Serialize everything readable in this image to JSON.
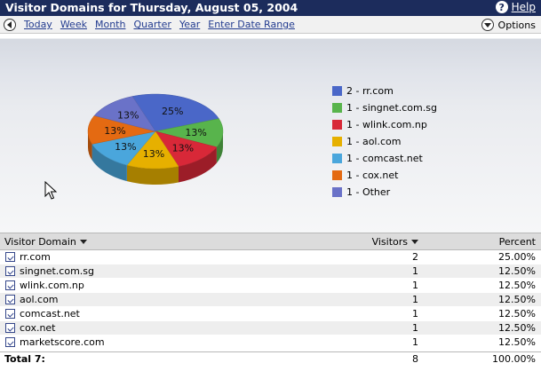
{
  "header": {
    "title": "Visitor Domains for Thursday, August 05, 2004",
    "help_label": "Help",
    "help_icon": "help-icon"
  },
  "toolbar": {
    "back_icon": "back-arrow-icon",
    "links": [
      "Today",
      "Week",
      "Month",
      "Quarter",
      "Year",
      "Enter Date Range"
    ],
    "options_label": "Options",
    "options_icon": "chevron-down-icon"
  },
  "chart_data": {
    "type": "pie",
    "style": "3d",
    "categories": [
      "rr.com",
      "singnet.com.sg",
      "wlink.com.np",
      "aol.com",
      "comcast.net",
      "cox.net",
      "Other"
    ],
    "values": [
      2,
      1,
      1,
      1,
      1,
      1,
      1
    ],
    "slice_labels": [
      "25%",
      "13%",
      "13%",
      "13%",
      "13%",
      "13%",
      "13%"
    ],
    "legend": [
      "2 - rr.com",
      "1 - singnet.com.sg",
      "1 - wlink.com.np",
      "1 - aol.com",
      "1 - comcast.net",
      "1 - cox.net",
      "1 - Other"
    ],
    "colors": [
      "#4a67c8",
      "#58b44c",
      "#d82838",
      "#e6b000",
      "#4aa6dc",
      "#e46a12",
      "#6a72c8"
    ],
    "legend_position": "right"
  },
  "table": {
    "columns": {
      "domain": "Visitor Domain",
      "visitors": "Visitors",
      "percent": "Percent"
    },
    "rows": [
      {
        "domain": "rr.com",
        "visitors": "2",
        "percent": "25.00%"
      },
      {
        "domain": "singnet.com.sg",
        "visitors": "1",
        "percent": "12.50%"
      },
      {
        "domain": "wlink.com.np",
        "visitors": "1",
        "percent": "12.50%"
      },
      {
        "domain": "aol.com",
        "visitors": "1",
        "percent": "12.50%"
      },
      {
        "domain": "comcast.net",
        "visitors": "1",
        "percent": "12.50%"
      },
      {
        "domain": "cox.net",
        "visitors": "1",
        "percent": "12.50%"
      },
      {
        "domain": "marketscore.com",
        "visitors": "1",
        "percent": "12.50%"
      }
    ],
    "total": {
      "label": "Total 7:",
      "visitors": "8",
      "percent": "100.00%"
    }
  }
}
